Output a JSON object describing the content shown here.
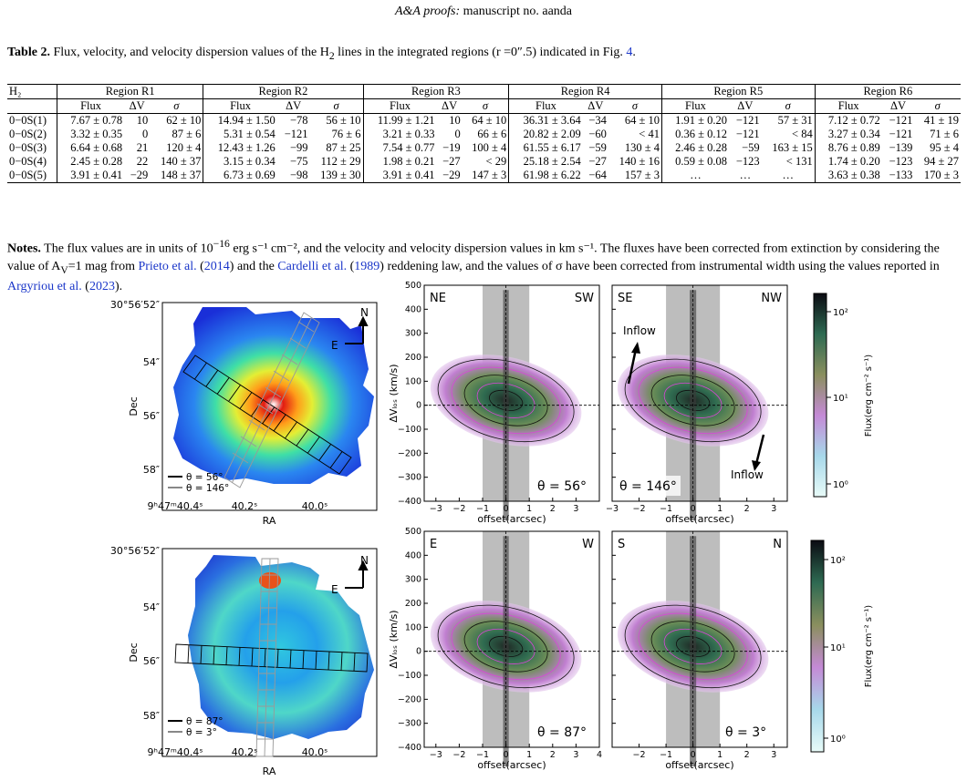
{
  "header": {
    "journal": "A&A proofs:",
    "rest": " manuscript no. aanda"
  },
  "table_caption": {
    "label": "Table 2.",
    "text_pre": " Flux, velocity, and velocity dispersion values of the H",
    "sub": "2",
    "text_post": " lines in the integrated regions (r =0″.5) indicated in Fig. ",
    "fig_ref": "4",
    "end": "."
  },
  "table": {
    "corner": "H₂",
    "regions": [
      "Region R1",
      "Region R2",
      "Region R3",
      "Region R4",
      "Region R5",
      "Region R6"
    ],
    "subheaders": [
      "Flux",
      "ΔV",
      "σ"
    ],
    "rows": [
      {
        "line": "0−0S(1)",
        "cells": [
          "7.67 ± 0.78",
          "10",
          "62 ± 10",
          "14.94 ± 1.50",
          "−78",
          "56 ± 10",
          "11.99 ± 1.21",
          "10",
          "64 ± 10",
          "36.31 ± 3.64",
          "−34",
          "64 ± 10",
          "1.91 ± 0.20",
          "−121",
          "57 ± 31",
          "7.12 ± 0.72",
          "−121",
          "41 ± 19"
        ]
      },
      {
        "line": "0−0S(2)",
        "cells": [
          "3.32 ± 0.35",
          "0",
          "87 ± 6",
          "5.31 ± 0.54",
          "−121",
          "76 ± 6",
          "3.21 ± 0.33",
          "0",
          "66 ± 6",
          "20.82 ± 2.09",
          "−60",
          "< 41",
          "0.36 ± 0.12",
          "−121",
          "< 84",
          "3.27 ± 0.34",
          "−121",
          "71 ± 6"
        ]
      },
      {
        "line": "0−0S(3)",
        "cells": [
          "6.64 ± 0.68",
          "21",
          "120 ± 4",
          "12.43 ± 1.26",
          "−99",
          "87 ± 25",
          "7.54 ± 0.77",
          "−19",
          "100 ± 4",
          "61.55 ± 6.17",
          "−59",
          "130 ± 4",
          "2.46 ± 0.28",
          "−59",
          "163 ± 15",
          "8.76 ± 0.89",
          "−139",
          "95 ± 4"
        ]
      },
      {
        "line": "0−0S(4)",
        "cells": [
          "2.45 ± 0.28",
          "22",
          "140 ± 37",
          "3.15 ± 0.34",
          "−75",
          "112 ± 29",
          "1.98 ± 0.21",
          "−27",
          "< 29",
          "25.18 ± 2.54",
          "−27",
          "140 ± 16",
          "0.59 ± 0.08",
          "−123",
          "< 131",
          "1.74 ± 0.20",
          "−123",
          "94 ± 27"
        ]
      },
      {
        "line": "0−0S(5)",
        "cells": [
          "3.91 ± 0.41",
          "−29",
          "148 ± 37",
          "6.73 ± 0.69",
          "−98",
          "139 ± 30",
          "3.91 ± 0.41",
          "−29",
          "147 ± 3",
          "61.98 ± 6.22",
          "−64",
          "157 ± 3",
          "…",
          "…",
          "…",
          "3.63 ± 0.38",
          "−133",
          "170 ± 3"
        ]
      }
    ]
  },
  "notes": {
    "label": "Notes.",
    "t1": " The flux values are in units of 10",
    "exp": "−16",
    "t2": " erg s⁻¹ cm⁻², and the velocity and velocity dispersion values in km s⁻¹. The fluxes have been corrected from extinction by considering the value of A",
    "av_sub": "V",
    "t3": "=1 mag from ",
    "cite1": "Prieto et al.",
    "y1": "2014",
    "t4": " and the ",
    "cite2": "Cardelli et al.",
    "y2": "1989",
    "t5": " reddening law, and the values of σ have been corrected from instrumental width using the values reported in ",
    "cite3": "Argyriou et al.",
    "y3": "2023",
    "t6": "."
  },
  "figure": {
    "maps": [
      {
        "dec_ticks": [
          "30°56′52″",
          "54″",
          "56″",
          "58″"
        ],
        "ra_ticks": [
          "9ʰ47ᵐ40.4ˢ",
          "40.2ˢ",
          "40.0ˢ"
        ],
        "xlabel": "RA",
        "ylabel": "Dec",
        "north": "N",
        "east": "E",
        "legend": [
          "θ = 56°",
          "θ = 146°"
        ]
      },
      {
        "dec_ticks": [
          "30°56′52″",
          "54″",
          "56″",
          "58″"
        ],
        "ra_ticks": [
          "9ʰ47ᵐ40.4ˢ",
          "40.2ˢ",
          "40.0ˢ"
        ],
        "xlabel": "RA",
        "ylabel": "Dec",
        "north": "N",
        "east": "E",
        "legend": [
          "θ = 87°",
          "θ = 3°"
        ]
      }
    ],
    "pv": [
      {
        "left": "NE",
        "right": "SW",
        "angle": "θ = 56°",
        "xlabel": "offset(arcsec)",
        "ylabel": "ΔVₗₒₛ (km/s)",
        "xticks": [
          "−3",
          "−2",
          "−1",
          "0",
          "1",
          "2",
          "3"
        ],
        "yticks": [
          "500",
          "400",
          "300",
          "200",
          "100",
          "0",
          "−100",
          "−200",
          "−300",
          "−400"
        ]
      },
      {
        "left": "SE",
        "right": "NW",
        "angle": "θ = 146°",
        "xlabel": "offset(arcsec)",
        "annot1": "Inflow",
        "annot2": "Inflow",
        "xticks": [
          "−3",
          "−2",
          "−1",
          "0",
          "1",
          "2",
          "3"
        ]
      },
      {
        "left": "E",
        "right": "W",
        "angle": "θ = 87°",
        "xlabel": "offset(arcsec)",
        "ylabel": "ΔVₗₒₛ (km/s)",
        "xticks": [
          "−3",
          "−2",
          "−1",
          "0",
          "1",
          "2",
          "3",
          "4"
        ],
        "yticks": [
          "500",
          "400",
          "300",
          "200",
          "100",
          "0",
          "−100",
          "−200",
          "−300",
          "−400"
        ]
      },
      {
        "left": "S",
        "right": "N",
        "angle": "θ = 3°",
        "xlabel": "offset(arcsec)",
        "xticks": [
          "−2",
          "−1",
          "0",
          "1",
          "2",
          "3"
        ]
      }
    ],
    "colorbar": {
      "label": "Flux(erg cm⁻² s⁻¹)",
      "ticks": [
        "10²",
        "10¹",
        "10⁰"
      ]
    }
  }
}
